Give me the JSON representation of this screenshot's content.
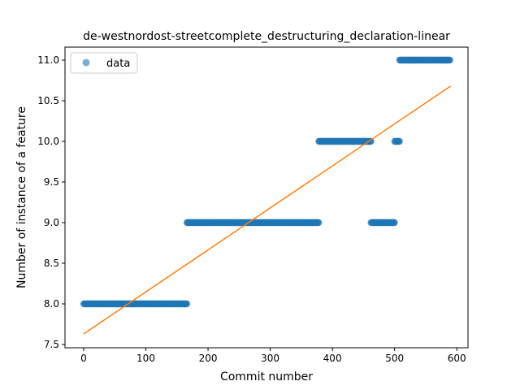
{
  "chart_data": {
    "type": "scatter",
    "title": "de-westnordost-streetcomplete_destructuring_declaration-linear",
    "xlabel": "Commit number",
    "ylabel": "Number of instance of a feature",
    "xlim": [
      -30,
      618
    ],
    "ylim": [
      7.46,
      11.16
    ],
    "xticks": [
      0,
      100,
      200,
      300,
      400,
      500,
      600
    ],
    "yticks": [
      7.5,
      8.0,
      8.5,
      9.0,
      9.5,
      10.0,
      10.5,
      11.0
    ],
    "ytick_labels": [
      "7.5",
      "8.0",
      "8.5",
      "9.0",
      "9.5",
      "10.0",
      "10.5",
      "11.0"
    ],
    "grid": false,
    "legend": {
      "position": "top-left",
      "entries": [
        "data"
      ]
    },
    "series": [
      {
        "name": "data",
        "kind": "scatter",
        "color": "#1f77b4",
        "segments": [
          {
            "x_start": 0,
            "x_end": 166,
            "y": 8.0
          },
          {
            "x_start": 166,
            "x_end": 378,
            "y": 9.0
          },
          {
            "x_start": 378,
            "x_end": 462,
            "y": 10.0
          },
          {
            "x_start": 462,
            "x_end": 500,
            "y": 9.0
          },
          {
            "x_start": 500,
            "x_end": 508,
            "y": 10.0
          },
          {
            "x_start": 508,
            "x_end": 589,
            "y": 11.0
          }
        ]
      },
      {
        "kind": "line",
        "color": "#ff7f0e",
        "x": [
          0,
          590
        ],
        "y": [
          7.63,
          10.68
        ]
      }
    ]
  }
}
